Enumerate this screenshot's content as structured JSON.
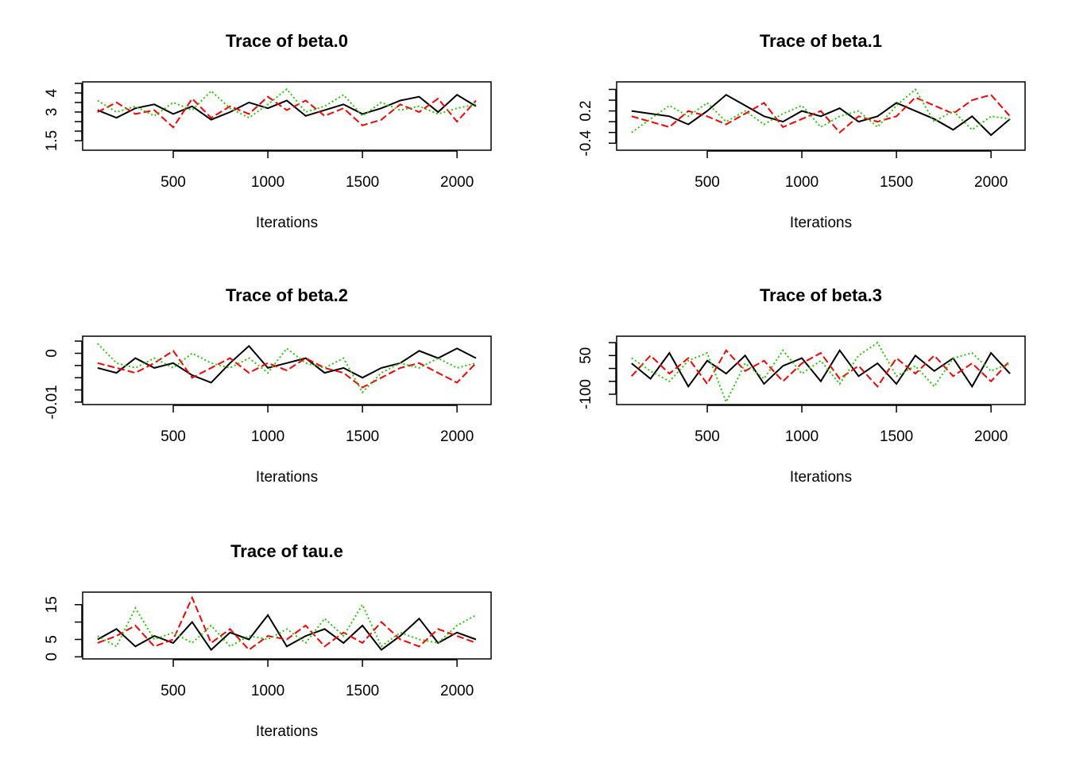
{
  "chart_data": [
    {
      "type": "line",
      "title": "Trace of beta.0",
      "xlabel": "Iterations",
      "x": [
        100,
        200,
        300,
        400,
        500,
        600,
        700,
        800,
        900,
        1000,
        1100,
        1200,
        1300,
        1400,
        1500,
        1600,
        1700,
        1800,
        1900,
        2000,
        2100
      ],
      "xlim": [
        21,
        2180
      ],
      "xticks": [
        500,
        1000,
        1500,
        2000
      ],
      "ylim": [
        1.0,
        4.58
      ],
      "yticks": [
        1.5,
        2.0,
        2.5,
        3.0,
        3.5,
        4.0,
        4.5
      ],
      "series": [
        {
          "color": "#000000",
          "dash": "solid",
          "values": [
            3.1,
            2.7,
            3.2,
            3.4,
            2.9,
            3.3,
            2.6,
            3.0,
            3.5,
            3.2,
            3.6,
            2.8,
            3.1,
            3.4,
            2.9,
            3.2,
            3.6,
            3.8,
            3.0,
            3.9,
            3.3
          ]
        },
        {
          "color": "#ff0000",
          "dash": "dashed",
          "values": [
            3.0,
            3.5,
            2.9,
            3.1,
            2.2,
            3.7,
            2.7,
            3.3,
            2.9,
            3.8,
            3.1,
            3.6,
            2.8,
            3.2,
            2.3,
            2.6,
            3.4,
            3.0,
            3.7,
            2.5,
            3.6
          ]
        },
        {
          "color": "#22cc00",
          "dash": "dotted",
          "values": [
            3.6,
            3.0,
            3.3,
            2.8,
            3.5,
            3.1,
            4.1,
            3.2,
            2.7,
            3.4,
            4.2,
            3.0,
            3.3,
            3.9,
            2.8,
            3.5,
            3.1,
            3.3,
            2.9,
            3.2,
            3.4
          ]
        }
      ]
    },
    {
      "type": "line",
      "title": "Trace of beta.1",
      "xlabel": "Iterations",
      "x": [
        100,
        200,
        300,
        400,
        500,
        600,
        700,
        800,
        900,
        1000,
        1100,
        1200,
        1300,
        1400,
        1500,
        1600,
        1700,
        1800,
        1900,
        2000,
        2100
      ],
      "xlim": [
        21,
        2180
      ],
      "xticks": [
        500,
        1000,
        1500,
        2000
      ],
      "ylim": [
        -0.53,
        0.74
      ],
      "yticks": [
        -0.4,
        -0.2,
        0,
        0.2,
        0.4,
        0.6
      ],
      "series": [
        {
          "color": "#000000",
          "dash": "solid",
          "values": [
            0.2,
            0.15,
            0.1,
            -0.05,
            0.2,
            0.5,
            0.3,
            0.1,
            0.0,
            0.2,
            0.1,
            0.25,
            0.0,
            0.1,
            0.35,
            0.2,
            0.05,
            -0.15,
            0.1,
            -0.25,
            0.05
          ]
        },
        {
          "color": "#ff0000",
          "dash": "dashed",
          "values": [
            0.1,
            0.0,
            -0.1,
            0.2,
            0.1,
            -0.05,
            0.15,
            0.35,
            -0.1,
            0.05,
            0.2,
            -0.2,
            0.1,
            0.0,
            0.1,
            0.45,
            0.3,
            0.15,
            0.4,
            0.5,
            0.1
          ]
        },
        {
          "color": "#22cc00",
          "dash": "dotted",
          "values": [
            -0.2,
            0.05,
            0.3,
            0.1,
            0.35,
            0.0,
            0.2,
            -0.05,
            0.15,
            0.3,
            -0.1,
            0.1,
            0.2,
            -0.1,
            0.3,
            0.6,
            0.0,
            0.2,
            -0.15,
            0.1,
            0.05
          ]
        }
      ]
    },
    {
      "type": "line",
      "title": "Trace of beta.2",
      "xlabel": "Iterations",
      "x": [
        100,
        200,
        300,
        400,
        500,
        600,
        700,
        800,
        900,
        1000,
        1100,
        1200,
        1300,
        1400,
        1500,
        1600,
        1700,
        1800,
        1900,
        2000,
        2100
      ],
      "xlim": [
        21,
        2180
      ],
      "xticks": [
        500,
        1000,
        1500,
        2000
      ],
      "ylim": [
        -0.0105,
        0.0035
      ],
      "yticks": [
        -0.01,
        -0.0075,
        -0.005,
        -0.0025,
        0,
        0.0025
      ],
      "series": [
        {
          "color": "#000000",
          "dash": "solid",
          "values": [
            -0.003,
            -0.004,
            -0.001,
            -0.003,
            -0.002,
            -0.0045,
            -0.006,
            -0.002,
            0.0015,
            -0.003,
            -0.002,
            -0.001,
            -0.004,
            -0.003,
            -0.005,
            -0.003,
            -0.002,
            0.0005,
            -0.001,
            0.001,
            -0.001
          ]
        },
        {
          "color": "#ff0000",
          "dash": "dashed",
          "values": [
            -0.002,
            -0.003,
            -0.004,
            -0.002,
            0.0005,
            -0.005,
            -0.003,
            -0.001,
            -0.004,
            -0.002,
            -0.0035,
            -0.001,
            -0.003,
            -0.004,
            -0.007,
            -0.005,
            -0.003,
            -0.002,
            -0.004,
            -0.006,
            -0.002
          ]
        },
        {
          "color": "#22cc00",
          "dash": "dotted",
          "values": [
            0.002,
            -0.002,
            -0.003,
            -0.001,
            -0.003,
            0.0,
            -0.002,
            -0.003,
            -0.001,
            -0.004,
            0.001,
            -0.002,
            -0.003,
            -0.001,
            -0.008,
            -0.004,
            -0.002,
            -0.003,
            -0.001,
            -0.003,
            -0.002
          ]
        }
      ]
    },
    {
      "type": "line",
      "title": "Trace of beta.3",
      "xlabel": "Iterations",
      "x": [
        100,
        200,
        300,
        400,
        500,
        600,
        700,
        800,
        900,
        1000,
        1100,
        1200,
        1300,
        1400,
        1500,
        1600,
        1700,
        1800,
        1900,
        2000,
        2100
      ],
      "xlim": [
        21,
        2180
      ],
      "xticks": [
        500,
        1000,
        1500,
        2000
      ],
      "ylim": [
        -140,
        125
      ],
      "yticks": [
        -100,
        -50,
        0,
        50,
        100
      ],
      "series": [
        {
          "color": "#000000",
          "dash": "solid",
          "values": [
            20,
            -40,
            60,
            -70,
            30,
            -20,
            50,
            -60,
            10,
            40,
            -50,
            70,
            -30,
            20,
            -60,
            50,
            -10,
            40,
            -70,
            60,
            -20
          ]
        },
        {
          "color": "#ff0000",
          "dash": "dashed",
          "values": [
            -30,
            50,
            -20,
            40,
            -60,
            70,
            -10,
            30,
            -50,
            20,
            60,
            -40,
            10,
            -70,
            40,
            -20,
            50,
            -30,
            20,
            -50,
            30
          ]
        },
        {
          "color": "#22cc00",
          "dash": "dotted",
          "values": [
            40,
            -10,
            -50,
            30,
            60,
            -130,
            20,
            -40,
            70,
            -20,
            30,
            -60,
            50,
            100,
            -30,
            10,
            -70,
            40,
            60,
            -10,
            20
          ]
        }
      ]
    },
    {
      "type": "line",
      "title": "Trace of tau.e",
      "xlabel": "Iterations",
      "x": [
        100,
        200,
        300,
        400,
        500,
        600,
        700,
        800,
        900,
        1000,
        1100,
        1200,
        1300,
        1400,
        1500,
        1600,
        1700,
        1800,
        1900,
        2000,
        2100
      ],
      "xlim": [
        21,
        2180
      ],
      "xticks": [
        500,
        1000,
        1500,
        2000
      ],
      "ylim": [
        -0.6,
        18.6
      ],
      "yticks": [
        0,
        5,
        10,
        15
      ],
      "series": [
        {
          "color": "#000000",
          "dash": "solid",
          "values": [
            5,
            8,
            3,
            6,
            4,
            10,
            2,
            7,
            5,
            12,
            3,
            6,
            8,
            4,
            9,
            2,
            6,
            11,
            4,
            7,
            5
          ]
        },
        {
          "color": "#ff0000",
          "dash": "dashed",
          "values": [
            4,
            6,
            9,
            3,
            5,
            17,
            4,
            8,
            2,
            6,
            5,
            9,
            3,
            7,
            4,
            10,
            5,
            3,
            8,
            6,
            4
          ]
        },
        {
          "color": "#22cc00",
          "dash": "dotted",
          "values": [
            6,
            3,
            14,
            5,
            7,
            4,
            9,
            3,
            6,
            5,
            8,
            4,
            11,
            6,
            15,
            3,
            7,
            5,
            4,
            9,
            12
          ]
        }
      ]
    }
  ]
}
